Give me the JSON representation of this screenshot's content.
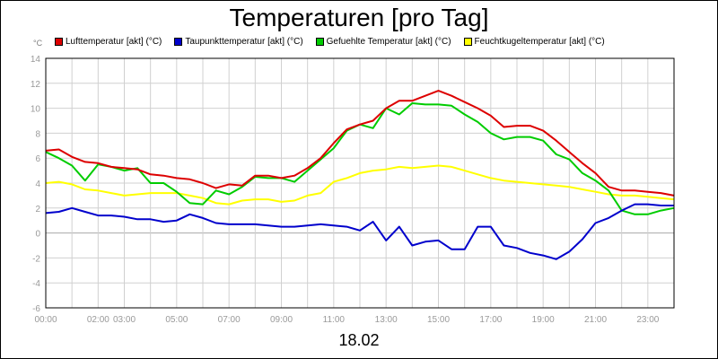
{
  "chart_data": {
    "type": "line",
    "title": "Temperaturen [pro Tag]",
    "ylabel": "°C",
    "xlabel": "18.02",
    "ylim": [
      -6,
      14
    ],
    "xlim": [
      0,
      24
    ],
    "grid": true,
    "legend_placement": "top",
    "y_ticks": [
      "14",
      "12",
      "10",
      "8",
      "6",
      "4",
      "2",
      "0",
      "-2",
      "-4",
      "-6"
    ],
    "x_ticks": [
      {
        "x": 0,
        "label": "00:00"
      },
      {
        "x": 2,
        "label": "02:00"
      },
      {
        "x": 3,
        "label": "03:00"
      },
      {
        "x": 5,
        "label": "05:00"
      },
      {
        "x": 7,
        "label": "07:00"
      },
      {
        "x": 9,
        "label": "09:00"
      },
      {
        "x": 11,
        "label": "11:00"
      },
      {
        "x": 13,
        "label": "13:00"
      },
      {
        "x": 15,
        "label": "15:00"
      },
      {
        "x": 17,
        "label": "17:00"
      },
      {
        "x": 19,
        "label": "19:00"
      },
      {
        "x": 21,
        "label": "21:00"
      },
      {
        "x": 23,
        "label": "23:00"
      }
    ],
    "x": [
      0,
      0.5,
      1,
      1.5,
      2,
      2.5,
      3,
      3.5,
      4,
      4.5,
      5,
      5.5,
      6,
      6.5,
      7,
      7.5,
      8,
      8.5,
      9,
      9.5,
      10,
      10.5,
      11,
      11.5,
      12,
      12.5,
      13,
      13.5,
      14,
      14.5,
      15,
      15.5,
      16,
      16.5,
      17,
      17.5,
      18,
      18.5,
      19,
      19.5,
      20,
      20.5,
      21,
      21.5,
      22,
      22.5,
      23,
      23.5,
      24
    ],
    "series": [
      {
        "name": "Lufttemperatur [akt] (°C)",
        "color": "#dd0000",
        "values": [
          6.6,
          6.7,
          6.1,
          5.7,
          5.6,
          5.3,
          5.2,
          5.1,
          4.7,
          4.6,
          4.4,
          4.3,
          4.0,
          3.6,
          3.9,
          3.8,
          4.6,
          4.6,
          4.4,
          4.6,
          5.2,
          6.0,
          7.2,
          8.3,
          8.7,
          9.0,
          10.0,
          10.6,
          10.6,
          11.0,
          11.4,
          11.0,
          10.5,
          10.0,
          9.4,
          8.5,
          8.6,
          8.6,
          8.2,
          7.4,
          6.5,
          5.6,
          4.8,
          3.7,
          3.4,
          3.4,
          3.3,
          3.2,
          3.0
        ]
      },
      {
        "name": "Taupunkttemperatur [akt] (°C)",
        "color": "#0000cc",
        "values": [
          1.6,
          1.7,
          2.0,
          1.7,
          1.4,
          1.4,
          1.3,
          1.1,
          1.1,
          0.9,
          1.0,
          1.5,
          1.2,
          0.8,
          0.7,
          0.7,
          0.7,
          0.6,
          0.5,
          0.5,
          0.6,
          0.7,
          0.6,
          0.5,
          0.2,
          0.9,
          -0.6,
          0.5,
          -1.0,
          -0.7,
          -0.6,
          -1.3,
          -1.3,
          0.5,
          0.5,
          -1.0,
          -1.2,
          -1.6,
          -1.8,
          -2.1,
          -1.5,
          -0.5,
          0.8,
          1.2,
          1.8,
          2.3,
          2.3,
          2.2,
          2.2
        ]
      },
      {
        "name": "Gefuehlte Temperatur [akt] (°C)",
        "color": "#00cc00",
        "values": [
          6.5,
          6.0,
          5.4,
          4.2,
          5.5,
          5.3,
          5.0,
          5.2,
          4.0,
          4.0,
          3.3,
          2.4,
          2.3,
          3.4,
          3.1,
          3.7,
          4.5,
          4.4,
          4.4,
          4.1,
          5.0,
          5.9,
          6.8,
          8.2,
          8.7,
          8.4,
          10.0,
          9.5,
          10.4,
          10.3,
          10.3,
          10.2,
          9.5,
          8.9,
          8.0,
          7.5,
          7.7,
          7.7,
          7.4,
          6.3,
          5.9,
          4.8,
          4.2,
          3.4,
          1.8,
          1.5,
          1.5,
          1.8,
          2.0
        ]
      },
      {
        "name": "Feuchtkugeltemperatur [akt] (°C)",
        "color": "#ffff00",
        "values": [
          4.0,
          4.1,
          3.9,
          3.5,
          3.4,
          3.2,
          3.0,
          3.1,
          3.2,
          3.2,
          3.2,
          3.0,
          2.8,
          2.4,
          2.3,
          2.6,
          2.7,
          2.7,
          2.5,
          2.6,
          3.0,
          3.2,
          4.1,
          4.4,
          4.8,
          5.0,
          5.1,
          5.3,
          5.2,
          5.3,
          5.4,
          5.3,
          5.0,
          4.7,
          4.4,
          4.2,
          4.1,
          4.0,
          3.9,
          3.8,
          3.7,
          3.5,
          3.3,
          3.1,
          3.0,
          3.0,
          2.9,
          2.8,
          2.7
        ]
      }
    ]
  }
}
